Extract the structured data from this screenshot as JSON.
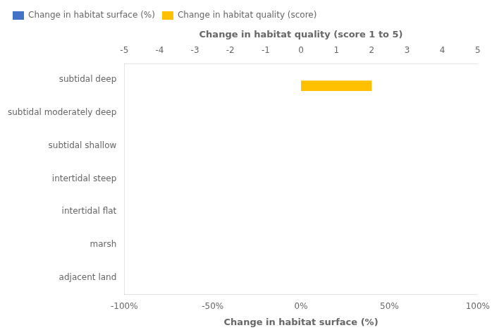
{
  "chart_data": {
    "type": "bar",
    "orientation": "horizontal",
    "categories": [
      "subtidal deep",
      "subtidal moderately deep",
      "subtidal shallow",
      "intertidal steep",
      "intertidal flat",
      "marsh",
      "adjacent land"
    ],
    "series": [
      {
        "name": "Change in habitat surface (%)",
        "color": "#4472C4",
        "values": [
          0,
          0,
          0,
          0,
          0,
          0,
          0
        ],
        "axis": "x"
      },
      {
        "name": "Change in habitat quality (score)",
        "color": "#FFC000",
        "values": [
          2,
          0,
          0,
          0,
          0,
          0,
          0
        ],
        "axis": "x2"
      }
    ],
    "xlabel": "Change in habitat surface (%)",
    "xlim": [
      -100,
      100
    ],
    "xticks": [
      {
        "value": -100,
        "label": "-100%"
      },
      {
        "value": -50,
        "label": "-50%"
      },
      {
        "value": 0,
        "label": "0%"
      },
      {
        "value": 50,
        "label": "50%"
      },
      {
        "value": 100,
        "label": "100%"
      }
    ],
    "x2label": "Change in habitat quality (score 1 to 5)",
    "x2lim": [
      -5,
      5
    ],
    "x2ticks": [
      -5,
      -4,
      -3,
      -2,
      -1,
      0,
      1,
      2,
      3,
      4,
      5
    ],
    "grid": false,
    "legend": "upper left"
  }
}
